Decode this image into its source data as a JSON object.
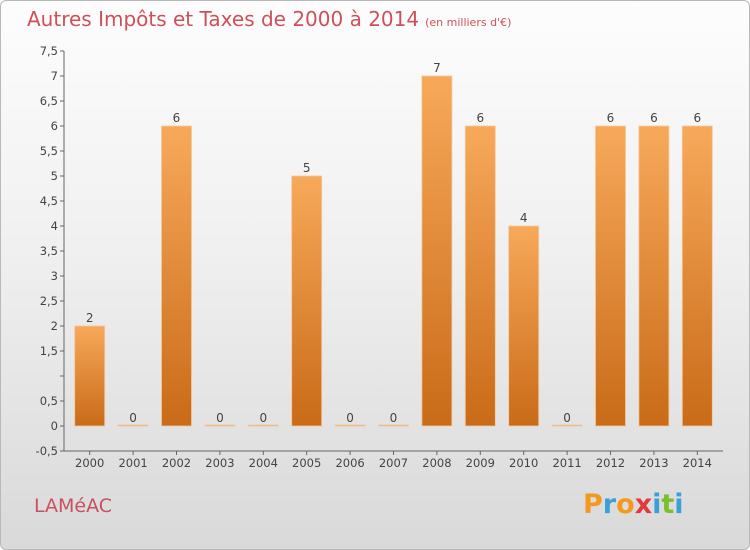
{
  "header": {
    "title": "Autres Impôts et Taxes de 2000 à 2014",
    "subtitle": "(en milliers d'€)"
  },
  "footer": {
    "commune": "LAMéAC",
    "brand": "Proxiti"
  },
  "colors": {
    "title": "#d04f58",
    "bar_top": "#f7a95a",
    "bar_bottom": "#c96b18",
    "brand_letters": [
      "#f39a1e",
      "#3aa0d8",
      "#f39a1e",
      "#e23a3a",
      "#3aa0d8",
      "#7bbf2a",
      "#3aa0d8"
    ]
  },
  "chart_data": {
    "type": "bar",
    "title": "Autres Impôts et Taxes de 2000 à 2014",
    "subtitle": "(en milliers d'€)",
    "xlabel": "",
    "ylabel": "",
    "categories": [
      "2000",
      "2001",
      "2002",
      "2003",
      "2004",
      "2005",
      "2006",
      "2007",
      "2008",
      "2009",
      "2010",
      "2011",
      "2012",
      "2013",
      "2014"
    ],
    "values": [
      2,
      0,
      6,
      0,
      0,
      5,
      0,
      0,
      7,
      6,
      4,
      0,
      6,
      6,
      6
    ],
    "value_labels": [
      "2",
      "0",
      "6",
      "0",
      "0",
      "5",
      "0",
      "0",
      "7",
      "6",
      "4",
      "0",
      "6",
      "6",
      "6"
    ],
    "ylim": [
      -0.5,
      7.5
    ],
    "yticks": [
      -0.5,
      0,
      0.5,
      1,
      1.5,
      2,
      2.5,
      3,
      3.5,
      4,
      4.5,
      5,
      5.5,
      6,
      6.5,
      7,
      7.5
    ],
    "ytick_labels": [
      "-0,5",
      "0",
      "0,5",
      "",
      "1,5",
      "2",
      "2,5",
      "3",
      "3,5",
      "4",
      "4,5",
      "5",
      "5,5",
      "6",
      "6,5",
      "7",
      "7,5"
    ],
    "grid": false,
    "legend": "none"
  }
}
